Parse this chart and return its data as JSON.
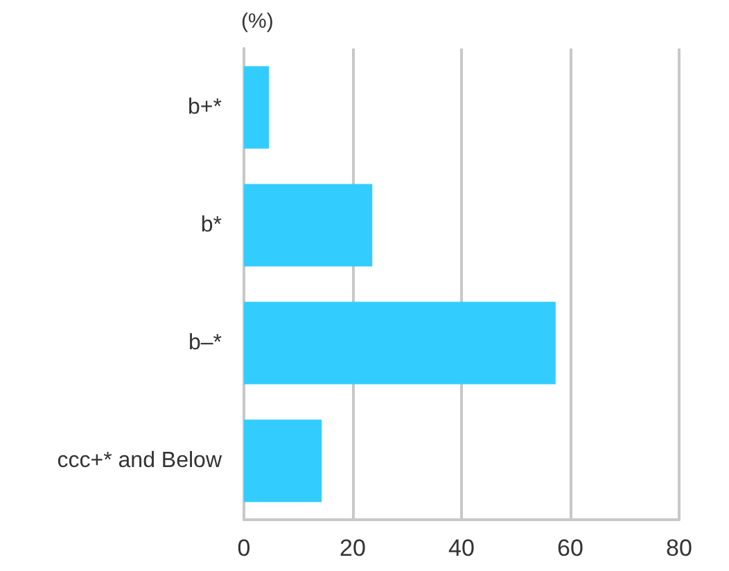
{
  "chart_data": {
    "type": "bar",
    "orientation": "horizontal",
    "xlabel": "(%)",
    "categories": [
      "b+*",
      "b*",
      "b–*",
      "ccc+* and Below"
    ],
    "values": [
      4.6,
      23.6,
      57.3,
      14.3
    ],
    "color": "#33ccff",
    "xlim": [
      0,
      80
    ],
    "xticks": [
      0,
      20,
      40,
      60,
      80
    ],
    "grid": "x"
  }
}
